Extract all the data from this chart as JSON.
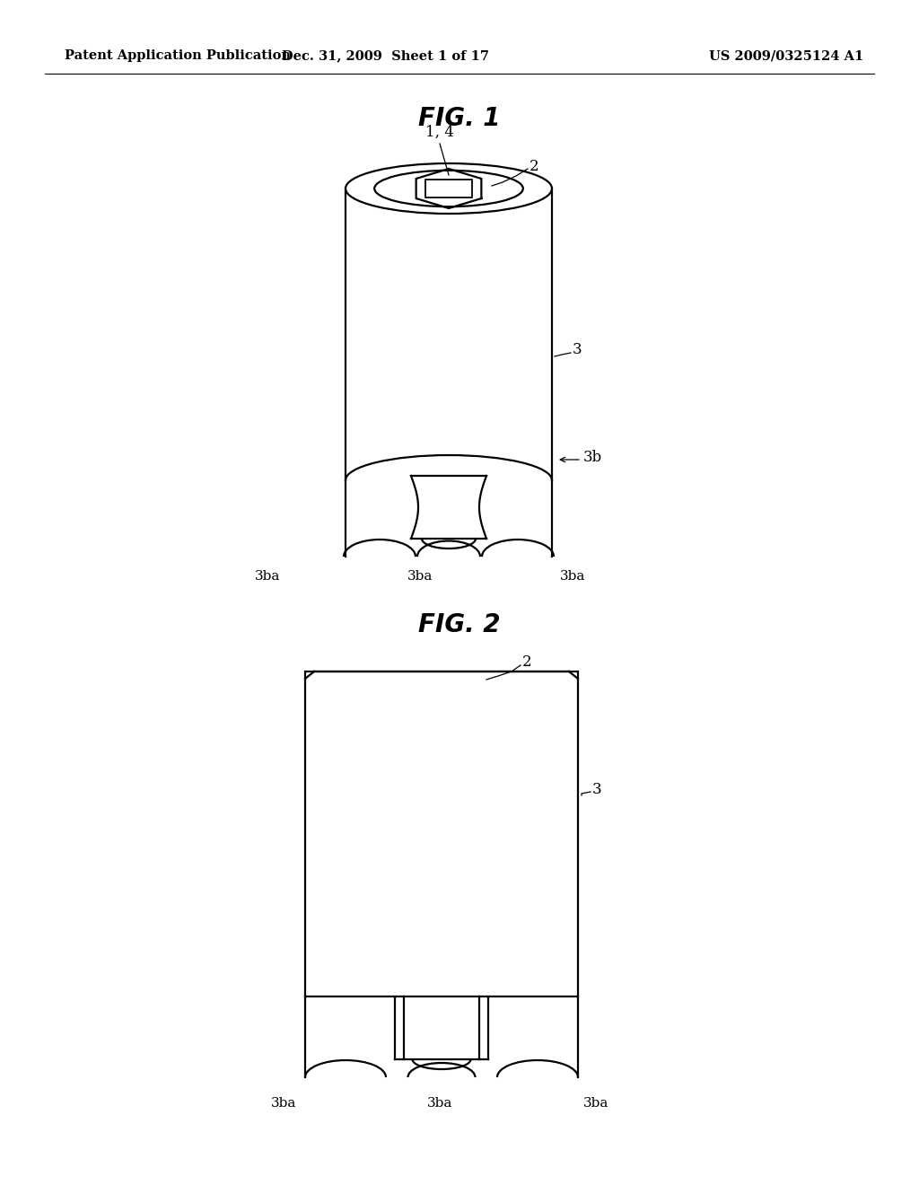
{
  "bg_color": "#ffffff",
  "line_color": "#000000",
  "header_left": "Patent Application Publication",
  "header_mid": "Dec. 31, 2009  Sheet 1 of 17",
  "header_right": "US 2009/0325124 A1",
  "fig1_title": "FIG. 1",
  "fig2_title": "FIG. 2"
}
